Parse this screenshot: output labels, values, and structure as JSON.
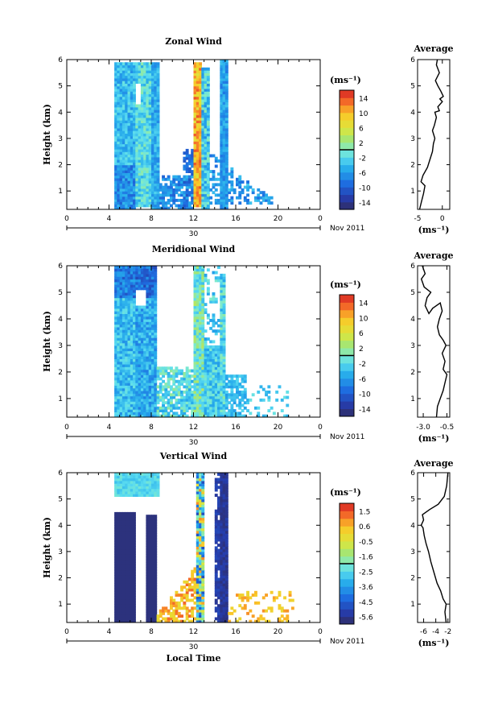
{
  "chart_data": [
    {
      "type": "heatmap",
      "title": "Zonal Wind",
      "ylabel": "Height (km)",
      "xticks": [
        "0",
        "4",
        "8",
        "12",
        "16",
        "20",
        "0"
      ],
      "yticks": [
        "1",
        "2",
        "3",
        "4",
        "5",
        "6"
      ],
      "ylim": [
        0.3,
        6
      ],
      "xlim": [
        0,
        24
      ],
      "date_label": "30",
      "month_label": "Nov 2011",
      "colorbar": {
        "unit": "(ms⁻¹)",
        "ticks": [
          "14",
          "10",
          "6",
          "2",
          "-2",
          "-6",
          "-10",
          "-14"
        ],
        "range": [
          -16,
          16
        ]
      },
      "average": {
        "title": "Average",
        "xlabel": "(ms⁻¹)",
        "xticks": [
          "-5",
          "0"
        ],
        "xlim": [
          -5,
          1.5
        ],
        "yticks": [
          "1",
          "2",
          "3",
          "4",
          "5",
          "6"
        ],
        "profile": [
          [
            -4.6,
            0.3
          ],
          [
            -4.2,
            0.6
          ],
          [
            -3.8,
            0.9
          ],
          [
            -3.5,
            1.2
          ],
          [
            -4.3,
            1.35
          ],
          [
            -3.9,
            1.6
          ],
          [
            -3.0,
            1.9
          ],
          [
            -2.5,
            2.2
          ],
          [
            -2.0,
            2.5
          ],
          [
            -1.8,
            2.8
          ],
          [
            -1.5,
            3.0
          ],
          [
            -2.0,
            3.3
          ],
          [
            -1.6,
            3.5
          ],
          [
            -1.2,
            3.8
          ],
          [
            -1.5,
            4.0
          ],
          [
            -0.6,
            4.05
          ],
          [
            -0.9,
            4.2
          ],
          [
            0.0,
            4.4
          ],
          [
            -0.5,
            4.5
          ],
          [
            0.2,
            4.6
          ],
          [
            -0.3,
            4.8
          ],
          [
            -0.9,
            5.0
          ],
          [
            -1.4,
            5.2
          ],
          [
            -0.6,
            5.5
          ],
          [
            -1.2,
            5.8
          ],
          [
            -1.0,
            6.0
          ]
        ]
      }
    },
    {
      "type": "heatmap",
      "title": "Meridional Wind",
      "ylabel": "Height (km)",
      "xticks": [
        "0",
        "4",
        "8",
        "12",
        "16",
        "20",
        "0"
      ],
      "yticks": [
        "1",
        "2",
        "3",
        "4",
        "5",
        "6"
      ],
      "ylim": [
        0.3,
        6
      ],
      "xlim": [
        0,
        24
      ],
      "date_label": "30",
      "month_label": "Nov 2011",
      "colorbar": {
        "unit": "(ms⁻¹)",
        "ticks": [
          "14",
          "10",
          "6",
          "2",
          "-2",
          "-6",
          "-10",
          "-14"
        ],
        "range": [
          -16,
          16
        ]
      },
      "average": {
        "title": "Average",
        "xlabel": "(ms⁻¹)",
        "xticks": [
          "-3.0",
          "-0.5"
        ],
        "xlim": [
          -3.6,
          -0.2
        ],
        "yticks": [
          "1",
          "2",
          "3",
          "4",
          "5",
          "6"
        ],
        "profile": [
          [
            -1.6,
            0.3
          ],
          [
            -1.5,
            0.7
          ],
          [
            -1.2,
            1.0
          ],
          [
            -0.9,
            1.3
          ],
          [
            -0.7,
            1.6
          ],
          [
            -0.5,
            1.9
          ],
          [
            -0.9,
            2.1
          ],
          [
            -0.7,
            2.4
          ],
          [
            -1.0,
            2.7
          ],
          [
            -0.6,
            3.0
          ],
          [
            -0.9,
            3.2
          ],
          [
            -1.3,
            3.4
          ],
          [
            -1.5,
            3.7
          ],
          [
            -1.3,
            4.0
          ],
          [
            -1.0,
            4.3
          ],
          [
            -1.2,
            4.6
          ],
          [
            -2.0,
            4.4
          ],
          [
            -2.4,
            4.2
          ],
          [
            -2.8,
            4.5
          ],
          [
            -2.6,
            4.8
          ],
          [
            -2.2,
            5.0
          ],
          [
            -2.9,
            5.2
          ],
          [
            -3.2,
            5.5
          ],
          [
            -2.8,
            5.7
          ],
          [
            -3.1,
            6.0
          ]
        ]
      }
    },
    {
      "type": "heatmap",
      "title": "Vertical Wind",
      "ylabel": "Height (km)",
      "xlabel": "Local Time",
      "xticks": [
        "0",
        "4",
        "8",
        "12",
        "16",
        "20",
        "0"
      ],
      "yticks": [
        "1",
        "2",
        "3",
        "4",
        "5",
        "6"
      ],
      "ylim": [
        0.3,
        6
      ],
      "xlim": [
        0,
        24
      ],
      "date_label": "30",
      "month_label": "Nov 2011",
      "colorbar": {
        "unit": "(ms⁻¹)",
        "ticks": [
          "1.5",
          "0.6",
          "-0.5",
          "-1.6",
          "-2.5",
          "-3.6",
          "-4.5",
          "-5.6"
        ],
        "range": [
          -6.1,
          2.0
        ]
      },
      "average": {
        "title": "Average",
        "xlabel": "(ms⁻¹)",
        "xticks": [
          "-6",
          "-4",
          "-2"
        ],
        "xlim": [
          -7,
          -1.7
        ],
        "yticks": [
          "1",
          "2",
          "3",
          "4",
          "5",
          "6"
        ],
        "profile": [
          [
            -2.3,
            0.3
          ],
          [
            -2.5,
            0.7
          ],
          [
            -2.3,
            1.0
          ],
          [
            -2.8,
            1.2
          ],
          [
            -3.2,
            1.5
          ],
          [
            -3.8,
            1.8
          ],
          [
            -4.3,
            2.2
          ],
          [
            -4.8,
            2.6
          ],
          [
            -5.2,
            3.0
          ],
          [
            -5.6,
            3.3
          ],
          [
            -5.9,
            3.6
          ],
          [
            -6.1,
            3.9
          ],
          [
            -6.4,
            4.0
          ],
          [
            -6.0,
            4.2
          ],
          [
            -6.2,
            4.4
          ],
          [
            -5.0,
            4.6
          ],
          [
            -3.6,
            4.8
          ],
          [
            -2.6,
            5.1
          ],
          [
            -2.2,
            5.5
          ],
          [
            -2.0,
            6.0
          ]
        ]
      }
    }
  ]
}
